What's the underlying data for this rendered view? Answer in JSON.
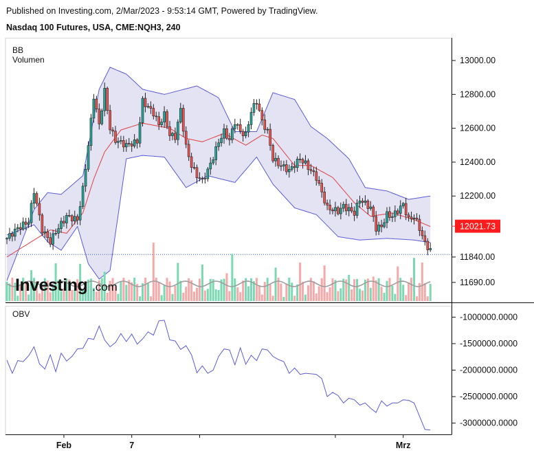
{
  "header": {
    "published": "Published on Investing.com, 2/Mar/2023 - 9:53:14 GMT, Powered by TradingView.",
    "symbol": "Nasdaq 100 Futures, USA, CME:NQH3, 240"
  },
  "watermark": {
    "brand": "Investing",
    "suffix": ".com"
  },
  "colors": {
    "up": "#26a69a",
    "down": "#ef5350",
    "band_fill": "#e3e3f3",
    "band_line": "#5b5bd6",
    "basis": "#e04040",
    "obv_line": "#5b5bd6",
    "price_marker": "#ff1c1c",
    "volume_up": "#7ad9b2",
    "volume_down": "#f7a8a8",
    "volume_ma": "#9e9e9e"
  },
  "chart_data": [
    {
      "type": "candlestick",
      "title": "Nasdaq 100 Futures, USA, CME:NQH3, 240",
      "indicators": [
        "BB",
        "Volumen"
      ],
      "y_ticks": [
        11690,
        11840,
        12200,
        12400,
        12600,
        12800,
        13000
      ],
      "y_tick_labels": [
        "11690.00",
        "11840.00",
        "12200.00",
        "12400.00",
        "12600.00",
        "12800.00",
        "13000.00"
      ],
      "ylim": [
        11580,
        13130
      ],
      "last_price": "12021.73",
      "last_price_value": 12021.73,
      "dotted_level": 11855,
      "x_labels": [
        "Feb",
        "7",
        "Mrz"
      ],
      "x_label_index": [
        21,
        46,
        146
      ],
      "bb_upper_anchors": [
        [
          0,
          11700
        ],
        [
          10,
          12120
        ],
        [
          15,
          12220
        ],
        [
          20,
          12210
        ],
        [
          28,
          12320
        ],
        [
          34,
          12830
        ],
        [
          38,
          12960
        ],
        [
          44,
          12920
        ],
        [
          50,
          12830
        ],
        [
          58,
          12800
        ],
        [
          70,
          12850
        ],
        [
          78,
          12780
        ],
        [
          84,
          12580
        ],
        [
          92,
          12580
        ],
        [
          98,
          12810
        ],
        [
          106,
          12770
        ],
        [
          112,
          12610
        ],
        [
          118,
          12540
        ],
        [
          126,
          12420
        ],
        [
          132,
          12250
        ],
        [
          140,
          12230
        ],
        [
          148,
          12180
        ],
        [
          156,
          12200
        ]
      ],
      "bb_lower_anchors": [
        [
          0,
          11970
        ],
        [
          10,
          12030
        ],
        [
          15,
          11930
        ],
        [
          20,
          11880
        ],
        [
          26,
          12020
        ],
        [
          30,
          11800
        ],
        [
          34,
          11710
        ],
        [
          38,
          11760
        ],
        [
          44,
          12420
        ],
        [
          50,
          12440
        ],
        [
          58,
          12430
        ],
        [
          66,
          12250
        ],
        [
          74,
          12320
        ],
        [
          84,
          12280
        ],
        [
          92,
          12430
        ],
        [
          98,
          12270
        ],
        [
          106,
          12130
        ],
        [
          114,
          12090
        ],
        [
          122,
          11960
        ],
        [
          130,
          11940
        ],
        [
          140,
          11950
        ],
        [
          150,
          11940
        ],
        [
          156,
          11925
        ]
      ],
      "bb_basis_anchors": [
        [
          0,
          11840
        ],
        [
          10,
          11940
        ],
        [
          16,
          12000
        ],
        [
          22,
          11980
        ],
        [
          28,
          12100
        ],
        [
          32,
          12300
        ],
        [
          36,
          12460
        ],
        [
          42,
          12590
        ],
        [
          50,
          12630
        ],
        [
          60,
          12600
        ],
        [
          66,
          12540
        ],
        [
          72,
          12520
        ],
        [
          80,
          12570
        ],
        [
          88,
          12500
        ],
        [
          94,
          12560
        ],
        [
          98,
          12540
        ],
        [
          106,
          12380
        ],
        [
          112,
          12380
        ],
        [
          120,
          12310
        ],
        [
          128,
          12160
        ],
        [
          134,
          12080
        ],
        [
          142,
          12100
        ],
        [
          150,
          12060
        ],
        [
          156,
          12020
        ]
      ],
      "price_anchors": [
        [
          0,
          11950
        ],
        [
          4,
          12010
        ],
        [
          8,
          12050
        ],
        [
          10,
          12230
        ],
        [
          13,
          12000
        ],
        [
          16,
          11930
        ],
        [
          18,
          11990
        ],
        [
          22,
          12080
        ],
        [
          26,
          12060
        ],
        [
          28,
          12240
        ],
        [
          30,
          12500
        ],
        [
          32,
          12790
        ],
        [
          34,
          12620
        ],
        [
          36,
          12820
        ],
        [
          38,
          12600
        ],
        [
          40,
          12530
        ],
        [
          44,
          12500
        ],
        [
          48,
          12520
        ],
        [
          50,
          12760
        ],
        [
          54,
          12690
        ],
        [
          56,
          12620
        ],
        [
          58,
          12680
        ],
        [
          60,
          12560
        ],
        [
          62,
          12550
        ],
        [
          64,
          12710
        ],
        [
          66,
          12490
        ],
        [
          68,
          12380
        ],
        [
          70,
          12320
        ],
        [
          72,
          12290
        ],
        [
          74,
          12350
        ],
        [
          76,
          12430
        ],
        [
          78,
          12520
        ],
        [
          80,
          12580
        ],
        [
          82,
          12530
        ],
        [
          84,
          12640
        ],
        [
          86,
          12580
        ],
        [
          88,
          12560
        ],
        [
          90,
          12700
        ],
        [
          92,
          12760
        ],
        [
          94,
          12640
        ],
        [
          96,
          12580
        ],
        [
          98,
          12420
        ],
        [
          100,
          12390
        ],
        [
          104,
          12350
        ],
        [
          108,
          12420
        ],
        [
          110,
          12390
        ],
        [
          114,
          12310
        ],
        [
          118,
          12130
        ],
        [
          122,
          12110
        ],
        [
          124,
          12140
        ],
        [
          128,
          12100
        ],
        [
          130,
          12180
        ],
        [
          134,
          12130
        ],
        [
          136,
          12010
        ],
        [
          138,
          12020
        ],
        [
          140,
          12090
        ],
        [
          142,
          12080
        ],
        [
          146,
          12150
        ],
        [
          148,
          12060
        ],
        [
          150,
          12080
        ],
        [
          152,
          12010
        ],
        [
          154,
          11920
        ],
        [
          156,
          11880
        ]
      ],
      "obv": {
        "label": "OBV",
        "y_ticks": [
          -1000000,
          -1500000,
          -2000000,
          -2500000,
          -3000000
        ],
        "y_tick_labels": [
          "-1000000.0000",
          "-1500000.0000",
          "-2000000.0000",
          "-2500000.0000",
          "-3000000.0000"
        ],
        "ylim": [
          -3200000,
          -800000
        ],
        "anchors": [
          [
            0,
            -1810000
          ],
          [
            2,
            -2060000
          ],
          [
            4,
            -1820000
          ],
          [
            6,
            -1840000
          ],
          [
            8,
            -1730000
          ],
          [
            10,
            -1560000
          ],
          [
            12,
            -1880000
          ],
          [
            14,
            -1980000
          ],
          [
            16,
            -1710000
          ],
          [
            18,
            -2030000
          ],
          [
            20,
            -1680000
          ],
          [
            22,
            -1830000
          ],
          [
            24,
            -1740000
          ],
          [
            26,
            -1600000
          ],
          [
            28,
            -1590000
          ],
          [
            30,
            -1400000
          ],
          [
            32,
            -1420000
          ],
          [
            34,
            -1170000
          ],
          [
            36,
            -1430000
          ],
          [
            38,
            -1560000
          ],
          [
            40,
            -1480000
          ],
          [
            42,
            -1310000
          ],
          [
            44,
            -1460000
          ],
          [
            46,
            -1320000
          ],
          [
            48,
            -1510000
          ],
          [
            50,
            -1410000
          ],
          [
            52,
            -1280000
          ],
          [
            54,
            -1340000
          ],
          [
            56,
            -1070000
          ],
          [
            58,
            -1060000
          ],
          [
            60,
            -1430000
          ],
          [
            62,
            -1450000
          ],
          [
            64,
            -1610000
          ],
          [
            66,
            -1540000
          ],
          [
            68,
            -1710000
          ],
          [
            70,
            -2050000
          ],
          [
            72,
            -1920000
          ],
          [
            74,
            -2060000
          ],
          [
            76,
            -2000000
          ],
          [
            78,
            -1740000
          ],
          [
            80,
            -1600000
          ],
          [
            82,
            -1620000
          ],
          [
            84,
            -1900000
          ],
          [
            86,
            -1580000
          ],
          [
            88,
            -1890000
          ],
          [
            90,
            -1720000
          ],
          [
            92,
            -1820000
          ],
          [
            94,
            -1600000
          ],
          [
            96,
            -1620000
          ],
          [
            98,
            -1740000
          ],
          [
            100,
            -1800000
          ],
          [
            102,
            -1840000
          ],
          [
            104,
            -2060000
          ],
          [
            106,
            -1960000
          ],
          [
            108,
            -2080000
          ],
          [
            110,
            -2060000
          ],
          [
            114,
            -2080000
          ],
          [
            116,
            -2160000
          ],
          [
            118,
            -2500000
          ],
          [
            120,
            -2420000
          ],
          [
            122,
            -2480000
          ],
          [
            124,
            -2620000
          ],
          [
            126,
            -2530000
          ],
          [
            128,
            -2560000
          ],
          [
            130,
            -2660000
          ],
          [
            132,
            -2620000
          ],
          [
            134,
            -2720000
          ],
          [
            136,
            -2800000
          ],
          [
            138,
            -2580000
          ],
          [
            140,
            -2680000
          ],
          [
            142,
            -2620000
          ],
          [
            144,
            -2620000
          ],
          [
            146,
            -2560000
          ],
          [
            148,
            -2570000
          ],
          [
            150,
            -2620000
          ],
          [
            152,
            -2870000
          ],
          [
            154,
            -3120000
          ],
          [
            156,
            -3130000
          ]
        ]
      }
    }
  ]
}
